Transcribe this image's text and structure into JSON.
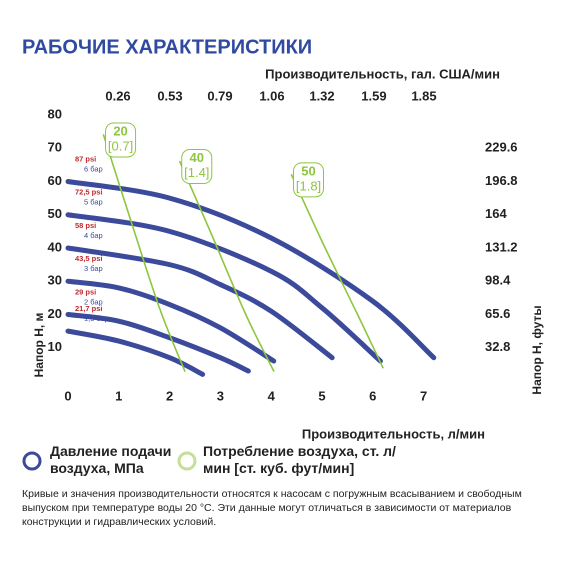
{
  "title": "РАБОЧИЕ ХАРАКТЕРИСТИКИ",
  "chart_data": {
    "type": "line",
    "x_label": "Производительность, л/мин",
    "x2_label": "Производительность, гал. США/мин",
    "y_label": "Напор H, м",
    "y2_label": "Напор H, футы",
    "xlim": [
      0,
      7.5
    ],
    "xticks": [
      0,
      1,
      2,
      3,
      4,
      5,
      6,
      7
    ],
    "x2lim": [
      0,
      1.98
    ],
    "x2ticks": [
      0.26,
      0.53,
      0.79,
      1.06,
      1.32,
      1.59,
      1.85
    ],
    "ylim": [
      0,
      80
    ],
    "yticks": [
      10,
      20,
      30,
      40,
      50,
      60,
      70,
      80
    ],
    "y2lim": [
      0,
      262.4
    ],
    "y2ticks": [
      32.8,
      65.6,
      98.4,
      131.2,
      164,
      196.8,
      229.6
    ],
    "series": [
      {
        "name": "Давление подачи воздуха, МПа",
        "color": "#3b4a9b",
        "label_color": "#c0282d",
        "curves": [
          {
            "psi": "87 psi",
            "bar": "6 бар",
            "x": [
              0,
              2,
              4,
              6,
              7.2
            ],
            "values": [
              60,
              55,
              43,
              24,
              7
            ]
          },
          {
            "psi": "72,5 psi",
            "bar": "5 бар",
            "x": [
              0,
              2,
              4,
              5,
              6.15
            ],
            "values": [
              50,
              45,
              33,
              22,
              6
            ]
          },
          {
            "psi": "58 psi",
            "bar": "4 бар",
            "x": [
              0,
              2,
              3,
              4,
              5.2
            ],
            "values": [
              40,
              35,
              29,
              21,
              7
            ]
          },
          {
            "psi": "43,5 psi",
            "bar": "3 бар",
            "x": [
              0,
              1,
              2,
              3,
              4.05
            ],
            "values": [
              30,
              28,
              23,
              16,
              6
            ]
          },
          {
            "psi": "29 psi",
            "bar": "2 бар",
            "x": [
              0,
              1,
              2,
              3,
              3.55
            ],
            "values": [
              20,
              18,
              13,
              7,
              3
            ]
          },
          {
            "psi": "21,7 psi",
            "bar": "1,5 бар",
            "x": [
              0,
              1,
              2,
              2.65
            ],
            "values": [
              15,
              12,
              7,
              2
            ]
          }
        ]
      },
      {
        "name": "Потребление воздуха, ст. л/мин [ст. куб. фут/мин]",
        "color": "#8dc63f",
        "curves": [
          {
            "label": "20",
            "sub": "[0.7]",
            "x": [
              0.7,
              1.2,
              1.8,
              2.3
            ],
            "values": [
              74,
              50,
              22,
              3
            ]
          },
          {
            "label": "40",
            "sub": "[1.4]",
            "x": [
              2.2,
              2.8,
              3.5,
              4.05
            ],
            "values": [
              66,
              45,
              20,
              3
            ]
          },
          {
            "label": "50",
            "sub": "[1.8]",
            "x": [
              4.4,
              5.0,
              5.7,
              6.2
            ],
            "values": [
              62,
              42,
              20,
              4
            ]
          }
        ]
      }
    ]
  },
  "note": "Кривые и значения производительности относятся к насосам с погружным всасыванием и свободным выпуском при температуре воды 20 °C. Эти данные могут отличаться в зависимости от материалов конструкции и гидравлических условий."
}
